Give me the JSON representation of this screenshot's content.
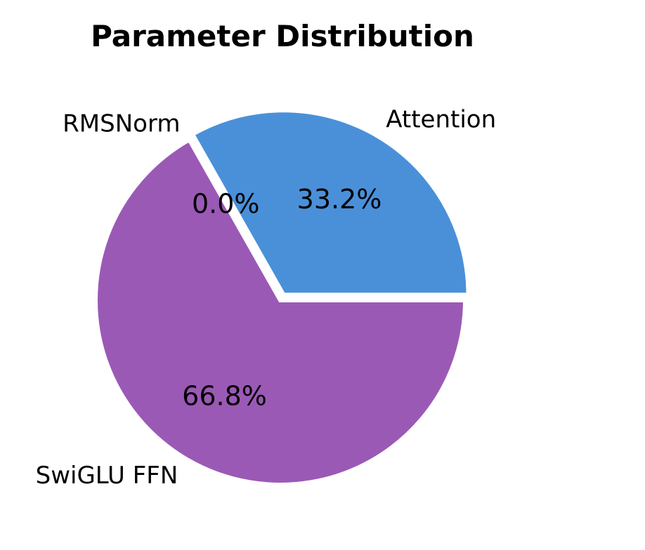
{
  "chart_data": {
    "type": "pie",
    "title": "Parameter Distribution",
    "categories": [
      "Attention",
      "RMSNorm",
      "SwiGLU FFN"
    ],
    "values": [
      33.2,
      0.0,
      66.8
    ],
    "percent_labels": [
      "33.2%",
      "0.0%",
      "66.8%"
    ],
    "colors": [
      "#4a90d9",
      "#f0f0f0",
      "#9b59b6"
    ],
    "exploded": [
      true,
      false,
      false
    ],
    "start_angle_deg": 0,
    "direction": "counterclockwise",
    "legend": "none",
    "grid": false
  }
}
